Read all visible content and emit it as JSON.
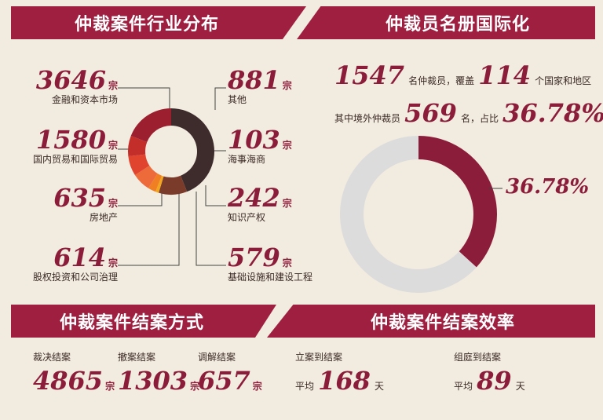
{
  "sections": {
    "industry": "仲裁案件行业分布",
    "roster": "仲裁员名册国际化",
    "closing_method": "仲裁案件结案方式",
    "efficiency": "仲裁案件结案效率"
  },
  "colors": {
    "banner": "#9e1f40",
    "accent": "#8c1d3a"
  },
  "industry": {
    "unit": "宗",
    "items": [
      {
        "value": "3646",
        "label": "金融和资本市场",
        "color": "#3e2b2b"
      },
      {
        "value": "881",
        "label": "其他",
        "color": "#7a3b2a"
      },
      {
        "value": "103",
        "label": "海事海商",
        "color": "#f2a61e"
      },
      {
        "value": "242",
        "label": "知识产权",
        "color": "#f07f24"
      },
      {
        "value": "579",
        "label": "基础设施和建设工程",
        "color": "#ed6a3a"
      },
      {
        "value": "614",
        "label": "股权投资和公司治理",
        "color": "#e0442e"
      },
      {
        "value": "635",
        "label": "房地产",
        "color": "#c42e2a"
      },
      {
        "value": "1580",
        "label": "国内贸易和国际贸易",
        "color": "#9b1f2e"
      }
    ]
  },
  "roster": {
    "total": "1547",
    "total_label": "名仲裁员，覆盖",
    "countries": "114",
    "countries_label": "个国家和地区",
    "prefix": "其中境外仲裁员",
    "foreign": "569",
    "foreign_label": "名，占比",
    "percent": "36.78%",
    "pie_label": "36.78%"
  },
  "closing": {
    "unit": "宗",
    "items": [
      {
        "label": "裁决结案",
        "value": "4865"
      },
      {
        "label": "撤案结案",
        "value": "1303"
      },
      {
        "label": "调解结案",
        "value": "657"
      }
    ]
  },
  "efficiency": {
    "items": [
      {
        "label": "立案到结案",
        "prefix": "平均",
        "value": "168",
        "unit": "天"
      },
      {
        "label": "组庭到结案",
        "prefix": "平均",
        "value": "89",
        "unit": "天"
      }
    ]
  },
  "chart_data": [
    {
      "type": "pie",
      "categories": [
        "金融和资本市场",
        "其他",
        "海事海商",
        "知识产权",
        "基础设施和建设工程",
        "股权投资和公司治理",
        "房地产",
        "国内贸易和国际贸易"
      ],
      "values": [
        3646,
        881,
        103,
        242,
        579,
        614,
        635,
        1580
      ],
      "title": "仲裁案件行业分布"
    },
    {
      "type": "pie",
      "categories": [
        "境外仲裁员",
        "其他"
      ],
      "values": [
        36.78,
        63.22
      ],
      "title": "仲裁员名册国际化"
    }
  ]
}
